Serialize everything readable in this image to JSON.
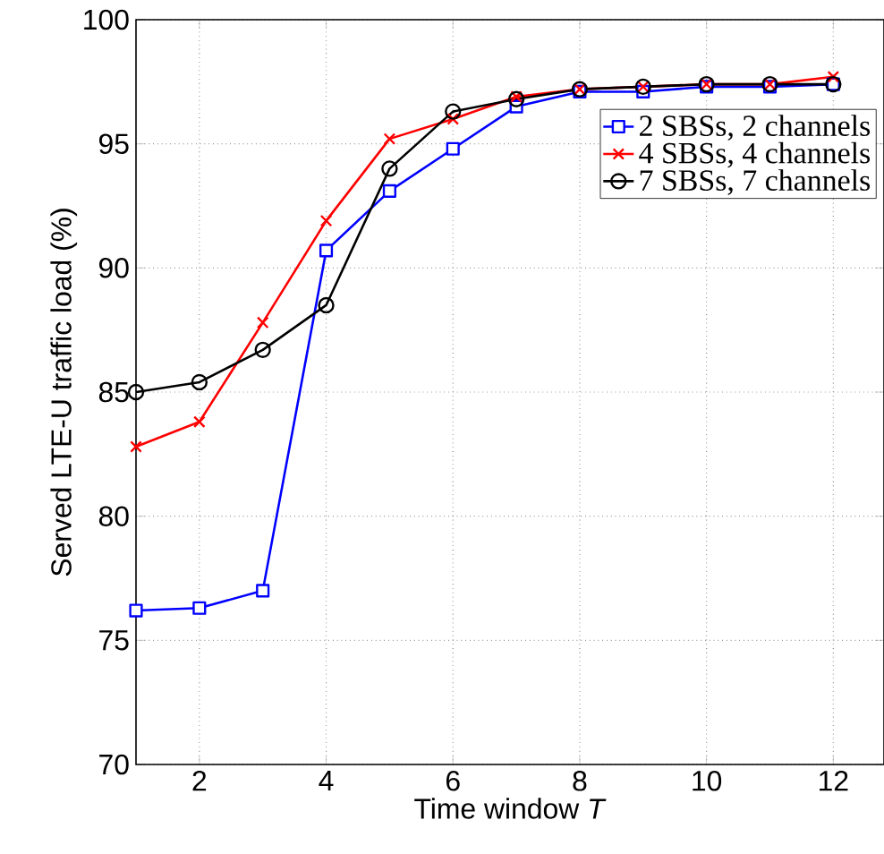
{
  "chart_data": {
    "type": "line",
    "xlabel": "Time window *T*",
    "ylabel": "Served LTE-U traffic load (%)",
    "x": [
      1,
      2,
      3,
      4,
      5,
      6,
      7,
      8,
      9,
      10,
      11,
      12
    ],
    "xlim": [
      1,
      12.8
    ],
    "xticks": [
      2,
      4,
      6,
      8,
      10,
      12
    ],
    "ylim": [
      70,
      100
    ],
    "yticks": [
      70,
      75,
      80,
      85,
      90,
      95,
      100
    ],
    "grid": true,
    "legend": "top right",
    "line_style": "solid",
    "series": [
      {
        "name": "2 SBSs, 2 channels",
        "color": "#0000ff",
        "marker": "square",
        "values": [
          76.2,
          76.3,
          77.0,
          90.7,
          93.1,
          94.8,
          96.5,
          97.1,
          97.1,
          97.3,
          97.3,
          97.4
        ]
      },
      {
        "name": "4 SBSs, 4 channels",
        "color": "#ff0000",
        "marker": "cross",
        "values": [
          82.8,
          83.8,
          87.8,
          91.9,
          95.2,
          96.0,
          96.9,
          97.2,
          97.3,
          97.4,
          97.4,
          97.7
        ]
      },
      {
        "name": "7 SBSs, 7 channels",
        "color": "#000000",
        "marker": "circle",
        "values": [
          85.0,
          85.4,
          86.7,
          88.5,
          94.0,
          96.3,
          96.8,
          97.2,
          97.3,
          97.4,
          97.4,
          97.4
        ]
      }
    ]
  }
}
